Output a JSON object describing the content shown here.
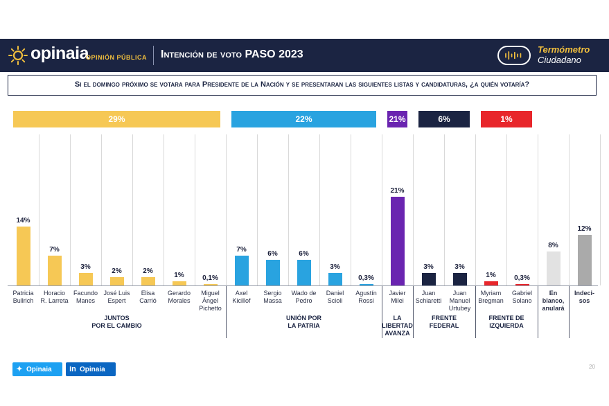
{
  "header": {
    "logo_name": "opinaia",
    "logo_sub": "OPINIÓN PÚBLICA",
    "title": "Intención de voto PASO 2023",
    "badge_line1": "Termómetro",
    "badge_line2": "Ciudadano",
    "bg_color": "#1b2442"
  },
  "question": "Si el domingo próximo se votara para Presidente de la Nación y se presentaran las siguientes listas y candidaturas, ¿a quién votaría?",
  "chart_data": {
    "type": "bar",
    "title": "Intención de voto PASO 2023",
    "ylim": [
      0,
      30
    ],
    "value_suffix": "%",
    "groups": [
      {
        "name": "JUNTOS POR EL CAMBIO",
        "line1": "JUNTOS",
        "line2": "POR EL CAMBIO",
        "total": "29%",
        "color": "#f6c855",
        "candidates": [
          {
            "line1": "Patricia",
            "line2": "Bullrich",
            "line3": "",
            "value": 14,
            "label": "14%"
          },
          {
            "line1": "Horacio",
            "line2": "R. Larreta",
            "line3": "",
            "value": 7,
            "label": "7%"
          },
          {
            "line1": "Facundo",
            "line2": "Manes",
            "line3": "",
            "value": 3,
            "label": "3%"
          },
          {
            "line1": "José Luis",
            "line2": "Espert",
            "line3": "",
            "value": 2,
            "label": "2%"
          },
          {
            "line1": "Elisa",
            "line2": "Carrió",
            "line3": "",
            "value": 2,
            "label": "2%"
          },
          {
            "line1": "Gerardo",
            "line2": "Morales",
            "line3": "",
            "value": 1,
            "label": "1%"
          },
          {
            "line1": "Miguel",
            "line2": "Ángel",
            "line3": "Pichetto",
            "value": 0.1,
            "label": "0,1%"
          }
        ]
      },
      {
        "name": "UNIÓN POR LA PATRIA",
        "line1": "UNIÓN POR",
        "line2": "LA PATRIA",
        "total": "22%",
        "color": "#29a3e0",
        "candidates": [
          {
            "line1": "Axel",
            "line2": "Kicillof",
            "line3": "",
            "value": 7,
            "label": "7%"
          },
          {
            "line1": "Sergio",
            "line2": "Massa",
            "line3": "",
            "value": 6,
            "label": "6%"
          },
          {
            "line1": "Wado de",
            "line2": "Pedro",
            "line3": "",
            "value": 6,
            "label": "6%"
          },
          {
            "line1": "Daniel",
            "line2": "Scioli",
            "line3": "",
            "value": 3,
            "label": "3%"
          },
          {
            "line1": "Agustín",
            "line2": "Rossi",
            "line3": "",
            "value": 0.3,
            "label": "0,3%"
          }
        ]
      },
      {
        "name": "LA LIBERTAD AVANZA",
        "line1": "LA",
        "line2": "LIBERTAD",
        "line3": "AVANZA",
        "total": "21%",
        "color": "#6a24b0",
        "candidates": [
          {
            "line1": "Javier",
            "line2": "Milei",
            "line3": "",
            "value": 21,
            "label": "21%"
          }
        ]
      },
      {
        "name": "FRENTE FEDERAL",
        "line1": "FRENTE",
        "line2": "FEDERAL",
        "total": "6%",
        "color": "#1b2442",
        "candidates": [
          {
            "line1": "Juan",
            "line2": "Schiaretti",
            "line3": "",
            "value": 3,
            "label": "3%"
          },
          {
            "line1": "Juan",
            "line2": "Manuel",
            "line3": "Urtubey",
            "value": 3,
            "label": "3%"
          }
        ]
      },
      {
        "name": "FRENTE DE IZQUIERDA",
        "line1": "FRENTE DE",
        "line2": "IZQUIERDA",
        "total": "1%",
        "color": "#e8262b",
        "candidates": [
          {
            "line1": "Myriam",
            "line2": "Bregman",
            "line3": "",
            "value": 1,
            "label": "1%"
          },
          {
            "line1": "Gabriel",
            "line2": "Solano",
            "line3": "",
            "value": 0.3,
            "label": "0,3%"
          }
        ]
      },
      {
        "name": "",
        "total": "",
        "color": "#e2e2e2",
        "candidates": [
          {
            "line1": "En",
            "line2": "blanco,",
            "line3": "anulará",
            "value": 8,
            "label": "8%",
            "bold": true
          }
        ]
      },
      {
        "name": "",
        "total": "",
        "color": "#aaaaaa",
        "candidates": [
          {
            "line1": "Indeci-",
            "line2": "sos",
            "line3": "",
            "value": 12,
            "label": "12%",
            "bold": true
          }
        ]
      }
    ]
  },
  "footer": {
    "twitter_label": "Opinaia",
    "linkedin_label": "Opinaia",
    "twitter_icon": "twitter-icon",
    "linkedin_icon": "linkedin-icon",
    "twitter_color": "#1da1f2",
    "linkedin_color": "#0a66c2",
    "page_number": "20"
  }
}
